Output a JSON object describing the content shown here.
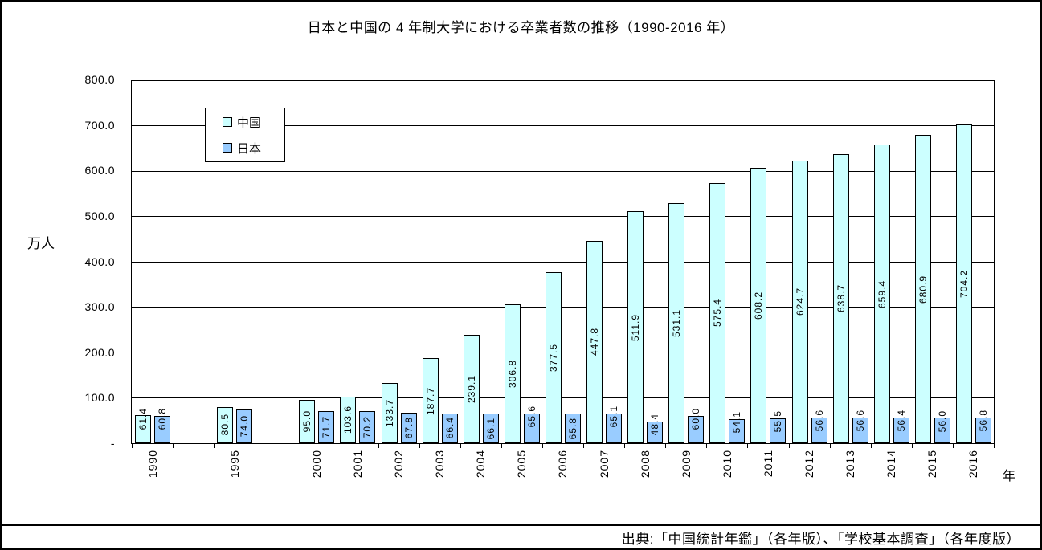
{
  "title": "日本と中国の 4 年制大学における卒業者数の推移（1990-2016 年）",
  "y_axis": {
    "unit_label": "万人",
    "ticks": [
      "800.0",
      "700.0",
      "600.0",
      "500.0",
      "400.0",
      "300.0",
      "200.0",
      "100.0",
      "-"
    ]
  },
  "x_axis": {
    "unit_label": "年"
  },
  "legend": [
    {
      "label": "中国",
      "color": "#CCFFFF"
    },
    {
      "label": "日本",
      "color": "#99CCFF"
    }
  ],
  "source": "出典:「中国統計年鑑」（各年版）、「学校基本調査」（各年度版）",
  "chart_data": {
    "type": "bar",
    "categories": [
      "1990",
      "1995",
      "2000",
      "2001",
      "2002",
      "2003",
      "2004",
      "2005",
      "2006",
      "2007",
      "2008",
      "2009",
      "2010",
      "2011",
      "2012",
      "2013",
      "2014",
      "2015",
      "2016"
    ],
    "series": [
      {
        "name": "中国",
        "color": "#CCFFFF",
        "values": [
          61.4,
          80.5,
          95.0,
          103.6,
          133.7,
          187.7,
          239.1,
          306.8,
          377.5,
          447.8,
          511.9,
          531.1,
          575.4,
          608.2,
          624.7,
          638.7,
          659.4,
          680.9,
          704.2
        ]
      },
      {
        "name": "日本",
        "color": "#99CCFF",
        "values": [
          60.8,
          74.0,
          71.7,
          70.2,
          67.8,
          66.4,
          66.1,
          65.6,
          65.8,
          65.1,
          48.4,
          60.0,
          54.1,
          55.5,
          56.6,
          56.6,
          56.4,
          56.0,
          56.8
        ]
      }
    ],
    "title": "日本と中国の 4 年制大学における卒業者数の推移（1990-2016 年）",
    "xlabel": "年",
    "ylabel": "万人",
    "ylim": [
      0,
      800
    ],
    "ytick_step": 100,
    "grid": true,
    "data_labels": "rotated-90-at-bar",
    "legend_position": "upper-left-inside",
    "category_slot_layout": "1990 and 1995 separated by one empty slot each; 2000-2016 contiguous; 21 slots total"
  }
}
